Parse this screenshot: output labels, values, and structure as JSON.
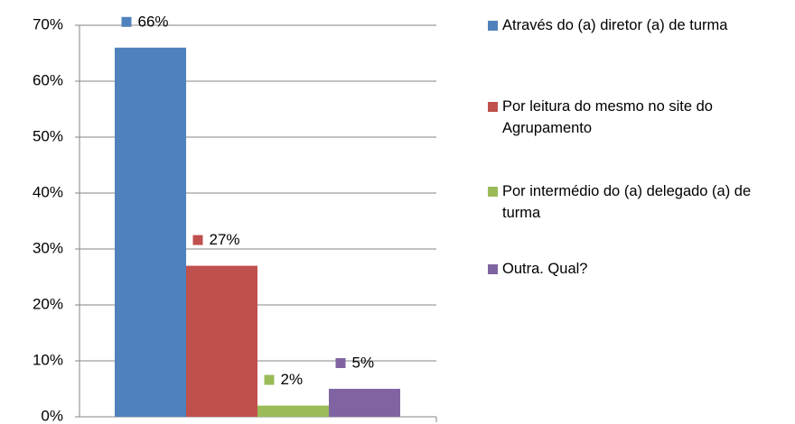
{
  "chart_data": {
    "type": "bar",
    "categories": [
      null
    ],
    "series": [
      {
        "name": "Através do (a) diretor (a) de turma",
        "color": "#4f81bd",
        "values": [
          66
        ],
        "value_labels": [
          "66%"
        ]
      },
      {
        "name": "Por leitura do mesmo no site do Agrupamento",
        "color": "#c0504d",
        "values": [
          27
        ],
        "value_labels": [
          "27%"
        ]
      },
      {
        "name": "Por intermédio do (a) delegado (a) de turma",
        "color": "#9bbb59",
        "values": [
          2
        ],
        "value_labels": [
          "2%"
        ]
      },
      {
        "name": "Outra. Qual?",
        "color": "#8064a2",
        "values": [
          5
        ],
        "value_labels": [
          "5%"
        ]
      }
    ],
    "ylim": [
      0,
      70
    ],
    "yticks": [
      {
        "value": 0,
        "label": "0%"
      },
      {
        "value": 10,
        "label": "10%"
      },
      {
        "value": 20,
        "label": "20%"
      },
      {
        "value": 30,
        "label": "30%"
      },
      {
        "value": 40,
        "label": "40%"
      },
      {
        "value": 50,
        "label": "50%"
      },
      {
        "value": 60,
        "label": "60%"
      },
      {
        "value": 70,
        "label": "70%"
      }
    ],
    "grid": true,
    "legend": "right"
  }
}
